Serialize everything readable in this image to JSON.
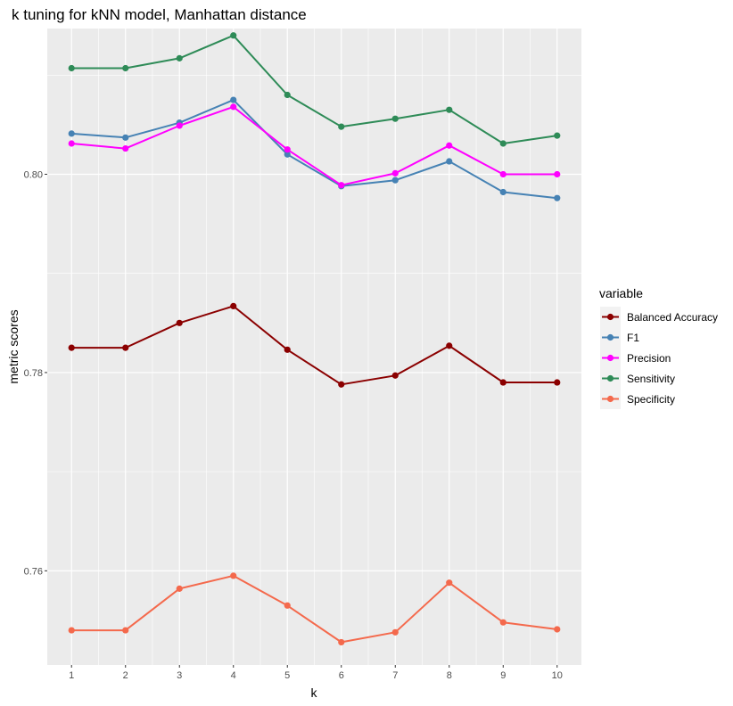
{
  "chart_data": {
    "type": "line",
    "title": "k tuning for kNN model, Manhattan distance",
    "xlabel": "k",
    "ylabel": "metric scores",
    "x": [
      1,
      2,
      3,
      4,
      5,
      6,
      7,
      8,
      9,
      10
    ],
    "x_tick_labels": [
      "1",
      "2",
      "3",
      "4",
      "5",
      "6",
      "7",
      "8",
      "9",
      "10"
    ],
    "xlim": [
      0.55,
      10.45
    ],
    "ylim": [
      0.7505,
      0.8147
    ],
    "y_ticks": [
      0.76,
      0.78,
      0.8
    ],
    "y_tick_labels": [
      "0.76",
      "0.78",
      "0.80"
    ],
    "grid": true,
    "legend": {
      "title": "variable",
      "placement": "right"
    },
    "series": [
      {
        "name": "Balanced Accuracy",
        "color": "#8b0000",
        "values": [
          0.7825,
          0.7825,
          0.785,
          0.7867,
          0.7823,
          0.7788,
          0.7797,
          0.7827,
          0.779,
          0.779
        ]
      },
      {
        "name": "F1",
        "color": "#4682b4",
        "values": [
          0.8041,
          0.8037,
          0.8052,
          0.8075,
          0.802,
          0.7988,
          0.7994,
          0.8013,
          0.7982,
          0.7976
        ]
      },
      {
        "name": "Precision",
        "color": "#ff00ff",
        "values": [
          0.8031,
          0.8026,
          0.8049,
          0.8068,
          0.8025,
          0.7989,
          0.8001,
          0.8029,
          0.8,
          0.8
        ]
      },
      {
        "name": "Sensitivity",
        "color": "#2e8b57",
        "values": [
          0.8107,
          0.8107,
          0.8117,
          0.814,
          0.808,
          0.8048,
          0.8056,
          0.8065,
          0.8031,
          0.8039
        ]
      },
      {
        "name": "Specificity",
        "color": "#f4694c",
        "values": [
          0.754,
          0.754,
          0.7582,
          0.7595,
          0.7565,
          0.7528,
          0.7538,
          0.7588,
          0.7548,
          0.7541
        ]
      }
    ]
  }
}
